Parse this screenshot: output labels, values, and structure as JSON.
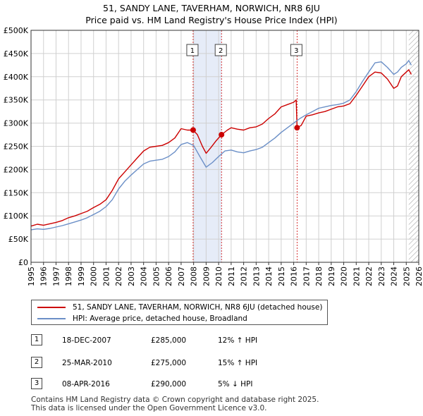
{
  "title_line1": "51, SANDY LANE, TAVERHAM, NORWICH, NR8 6JU",
  "title_line2": "Price paid vs. HM Land Registry's House Price Index (HPI)",
  "colors": {
    "property_line": "#cc0000",
    "hpi_line": "#6b8fc7",
    "shade": "#e6ecf8",
    "grid": "#d0d0d0",
    "hatch": "#999999"
  },
  "legend": {
    "property_label": "51, SANDY LANE, TAVERHAM, NORWICH, NR8 6JU (detached house)",
    "hpi_label": "HPI: Average price, detached house, Broadland"
  },
  "transactions": [
    {
      "num": "1",
      "date": "18-DEC-2007",
      "price": "£285,000",
      "hpi_change": "12% ↑ HPI"
    },
    {
      "num": "2",
      "date": "25-MAR-2010",
      "price": "£275,000",
      "hpi_change": "15% ↑ HPI"
    },
    {
      "num": "3",
      "date": "08-APR-2016",
      "price": "£290,000",
      "hpi_change": "5% ↓ HPI"
    }
  ],
  "footer_line1": "Contains HM Land Registry data © Crown copyright and database right 2025.",
  "footer_line2": "This data is licensed under the Open Government Licence v3.0.",
  "chart_data": {
    "type": "line",
    "title": "51, SANDY LANE, TAVERHAM, NORWICH, NR8 6JU",
    "subtitle": "Price paid vs. HM Land Registry's House Price Index (HPI)",
    "xlabel": "",
    "ylabel": "",
    "xlim": [
      1995,
      2026
    ],
    "ylim": [
      0,
      500000
    ],
    "x_ticks": [
      "1995",
      "1996",
      "1997",
      "1998",
      "1999",
      "2000",
      "2001",
      "2002",
      "2003",
      "2004",
      "2005",
      "2006",
      "2007",
      "2008",
      "2009",
      "2010",
      "2011",
      "2012",
      "2013",
      "2014",
      "2015",
      "2016",
      "2017",
      "2018",
      "2019",
      "2020",
      "2021",
      "2022",
      "2023",
      "2024",
      "2025",
      "2026"
    ],
    "y_ticks": [
      {
        "value": 0,
        "label": "£0"
      },
      {
        "value": 50000,
        "label": "£50K"
      },
      {
        "value": 100000,
        "label": "£100K"
      },
      {
        "value": 150000,
        "label": "£150K"
      },
      {
        "value": 200000,
        "label": "£200K"
      },
      {
        "value": 250000,
        "label": "£250K"
      },
      {
        "value": 300000,
        "label": "£300K"
      },
      {
        "value": 350000,
        "label": "£350K"
      },
      {
        "value": 400000,
        "label": "£400K"
      },
      {
        "value": 450000,
        "label": "£450K"
      },
      {
        "value": 500000,
        "label": "£500K"
      }
    ],
    "grid": true,
    "shaded_spans": [
      [
        2007.96,
        2010.23
      ]
    ],
    "event_lines": [
      {
        "label": "1",
        "x": 2007.96
      },
      {
        "label": "2",
        "x": 2010.23
      },
      {
        "label": "3",
        "x": 2016.27
      }
    ],
    "sales": [
      {
        "label": "1",
        "x": 2007.96,
        "y": 285000
      },
      {
        "label": "2",
        "x": 2010.23,
        "y": 275000
      },
      {
        "label": "3",
        "x": 2016.27,
        "y": 290000
      }
    ],
    "forecast_from": 2025.2,
    "series": [
      {
        "name": "51, SANDY LANE, TAVERHAM, NORWICH, NR8 6JU (detached house)",
        "color": "#cc0000",
        "x": [
          1995,
          1995.5,
          1996,
          1996.5,
          1997,
          1997.5,
          1998,
          1998.5,
          1999,
          1999.5,
          2000,
          2000.5,
          2001,
          2001.5,
          2002,
          2002.5,
          2003,
          2003.5,
          2004,
          2004.5,
          2005,
          2005.5,
          2006,
          2006.5,
          2007,
          2007.5,
          2007.96,
          2008.3,
          2008.7,
          2009,
          2009.4,
          2009.8,
          2010.23,
          2010.7,
          2011,
          2011.5,
          2012,
          2012.5,
          2013,
          2013.5,
          2014,
          2014.5,
          2015,
          2015.5,
          2016,
          2016.2,
          2016.27,
          2016.6,
          2017,
          2017.5,
          2018,
          2018.5,
          2019,
          2019.5,
          2020,
          2020.5,
          2021,
          2021.5,
          2022,
          2022.5,
          2023,
          2023.5,
          2024,
          2024.3,
          2024.6,
          2025,
          2025.2,
          2025.4
        ],
        "y": [
          78000,
          82000,
          80000,
          83000,
          86000,
          90000,
          96000,
          100000,
          105000,
          110000,
          118000,
          125000,
          135000,
          155000,
          180000,
          195000,
          210000,
          225000,
          240000,
          248000,
          250000,
          252000,
          258000,
          268000,
          288000,
          285000,
          285000,
          275000,
          250000,
          235000,
          248000,
          262000,
          275000,
          285000,
          290000,
          287000,
          285000,
          290000,
          292000,
          298000,
          310000,
          320000,
          335000,
          340000,
          345000,
          350000,
          290000,
          295000,
          315000,
          318000,
          322000,
          325000,
          330000,
          335000,
          337000,
          342000,
          360000,
          380000,
          400000,
          410000,
          408000,
          395000,
          375000,
          380000,
          400000,
          410000,
          415000,
          405000
        ]
      },
      {
        "name": "HPI: Average price, detached house, Broadland",
        "color": "#6b8fc7",
        "x": [
          1995,
          1995.5,
          1996,
          1996.5,
          1997,
          1997.5,
          1998,
          1998.5,
          1999,
          1999.5,
          2000,
          2000.5,
          2001,
          2001.5,
          2002,
          2002.5,
          2003,
          2003.5,
          2004,
          2004.5,
          2005,
          2005.5,
          2006,
          2006.5,
          2007,
          2007.5,
          2008,
          2008.5,
          2009,
          2009.5,
          2010,
          2010.5,
          2011,
          2011.5,
          2012,
          2012.5,
          2013,
          2013.5,
          2014,
          2014.5,
          2015,
          2015.5,
          2016,
          2016.5,
          2017,
          2017.5,
          2018,
          2018.5,
          2019,
          2019.5,
          2020,
          2020.5,
          2021,
          2021.5,
          2022,
          2022.5,
          2023,
          2023.5,
          2024,
          2024.3,
          2024.6,
          2025,
          2025.2,
          2025.4
        ],
        "y": [
          70000,
          72000,
          71000,
          73000,
          76000,
          79000,
          83000,
          87000,
          91000,
          96000,
          103000,
          110000,
          120000,
          135000,
          158000,
          175000,
          188000,
          200000,
          212000,
          218000,
          220000,
          222000,
          228000,
          238000,
          254000,
          258000,
          252000,
          228000,
          205000,
          215000,
          228000,
          240000,
          242000,
          238000,
          236000,
          240000,
          243000,
          248000,
          258000,
          268000,
          280000,
          290000,
          300000,
          310000,
          318000,
          325000,
          332000,
          335000,
          338000,
          340000,
          343000,
          350000,
          368000,
          390000,
          410000,
          430000,
          432000,
          420000,
          405000,
          410000,
          420000,
          428000,
          435000,
          425000
        ]
      }
    ]
  }
}
